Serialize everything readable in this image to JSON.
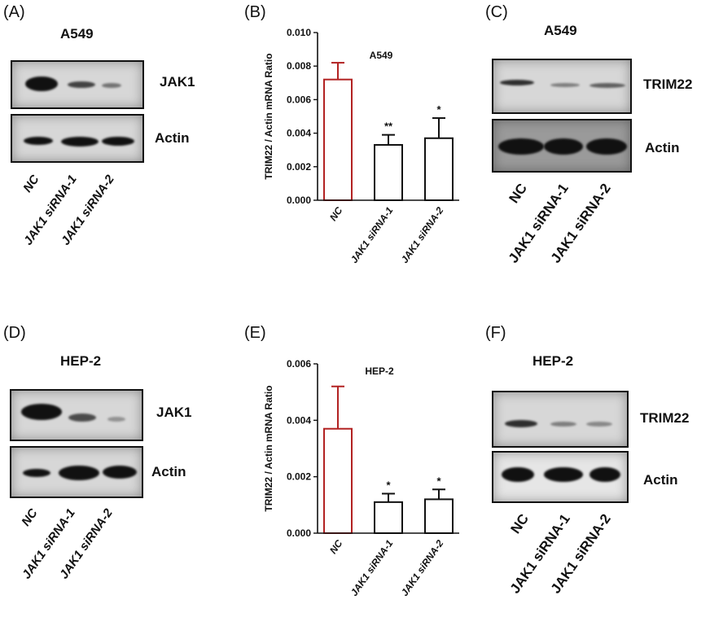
{
  "panels": {
    "A": {
      "letter": "(A)",
      "cell": "A549",
      "blot1": "JAK1",
      "blot2": "Actin",
      "lanes": [
        "NC",
        "JAK1 siRNA-1",
        "JAK1 siRNA-2"
      ]
    },
    "B": {
      "letter": "(B)"
    },
    "C": {
      "letter": "(C)",
      "cell": "A549",
      "blot1": "TRIM22",
      "blot2": "Actin",
      "lanes": [
        "NC",
        "JAK1 siRNA-1",
        "JAK1 siRNA-2"
      ]
    },
    "D": {
      "letter": "(D)",
      "cell": "HEP-2",
      "blot1": "JAK1",
      "blot2": "Actin",
      "lanes": [
        "NC",
        "JAK1 siRNA-1",
        "JAK1 siRNA-2"
      ]
    },
    "E": {
      "letter": "(E)"
    },
    "F": {
      "letter": "(F)",
      "cell": "HEP-2",
      "blot1": "TRIM22",
      "blot2": "Actin",
      "lanes": [
        "NC",
        "JAK1 siRNA-1",
        "JAK1 siRNA-2"
      ]
    }
  },
  "chart_data": [
    {
      "type": "bar",
      "title": "A549",
      "ylabel": "TRIM22 / Actin mRNA Ratio",
      "categories": [
        "NC",
        "JAK1 siRNA-1",
        "JAK1 siRNA-2"
      ],
      "values": [
        0.0072,
        0.0033,
        0.0037
      ],
      "errors": [
        0.001,
        0.0006,
        0.0012
      ],
      "significance": [
        "",
        "**",
        "*"
      ],
      "ylim": [
        0,
        0.01
      ],
      "yticks": [
        "0.000",
        "0.002",
        "0.004",
        "0.006",
        "0.008",
        "0.010"
      ],
      "colors": [
        "#b22222",
        "#111111",
        "#111111"
      ]
    },
    {
      "type": "bar",
      "title": "HEP-2",
      "ylabel": "TRIM22 / Actin mRNA Ratio",
      "categories": [
        "NC",
        "JAK1 siRNA-1",
        "JAK1 siRNA-2"
      ],
      "values": [
        0.0037,
        0.0011,
        0.0012
      ],
      "errors": [
        0.0015,
        0.0003,
        0.00035
      ],
      "significance": [
        "",
        "*",
        "*"
      ],
      "ylim": [
        0,
        0.006
      ],
      "yticks": [
        "0.000",
        "0.002",
        "0.004",
        "0.006"
      ],
      "colors": [
        "#b22222",
        "#111111",
        "#111111"
      ]
    }
  ]
}
